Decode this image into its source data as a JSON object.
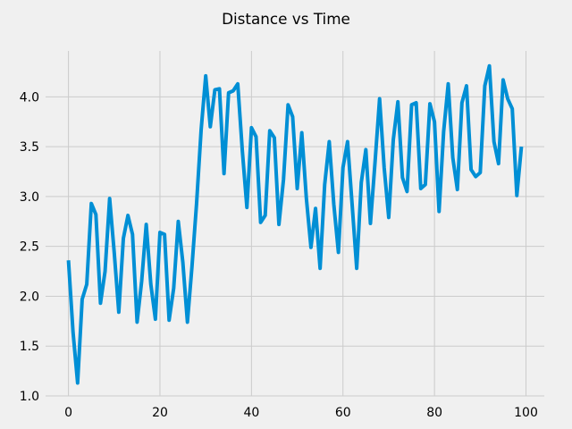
{
  "chart_data": {
    "type": "line",
    "title": "Distance vs Time",
    "xlabel": "",
    "ylabel": "",
    "xlim": [
      -5,
      104
    ],
    "ylim": [
      1.0,
      4.46
    ],
    "grid": true,
    "line_color": "#008fd5",
    "background_color": "#f0f0f0",
    "grid_color": "#cbcbcb",
    "x_ticks": [
      0,
      20,
      40,
      60,
      80,
      100
    ],
    "y_ticks": [
      1.0,
      1.5,
      2.0,
      2.5,
      3.0,
      3.5,
      4.0
    ],
    "x_tick_labels": [
      "0",
      "20",
      "40",
      "60",
      "80",
      "100"
    ],
    "y_tick_labels": [
      "1.0",
      "1.5",
      "2.0",
      "2.5",
      "3.0",
      "3.5",
      "4.0"
    ],
    "series": [
      {
        "x": [
          0,
          1,
          2,
          3,
          4,
          5,
          6,
          7,
          8,
          9,
          10,
          11,
          12,
          13,
          14,
          15,
          16,
          17,
          18,
          19,
          20,
          21,
          22,
          23,
          24,
          25,
          26,
          27,
          28,
          29,
          30,
          31,
          32,
          33,
          34,
          35,
          36,
          37,
          38,
          39,
          40,
          41,
          42,
          43,
          44,
          45,
          46,
          47,
          48,
          49,
          50,
          51,
          52,
          53,
          54,
          55,
          56,
          57,
          58,
          59,
          60,
          61,
          62,
          63,
          64,
          65,
          66,
          67,
          68,
          69,
          70,
          71,
          72,
          73,
          74,
          75,
          76,
          77,
          78,
          79,
          80,
          81,
          82,
          83,
          84,
          85,
          86,
          87,
          88,
          89,
          90,
          91,
          92,
          93,
          94,
          95,
          96,
          97,
          98,
          99
        ],
        "values": [
          2.36,
          1.64,
          1.13,
          1.97,
          2.12,
          2.93,
          2.82,
          1.93,
          2.25,
          2.98,
          2.44,
          1.84,
          2.58,
          2.81,
          2.62,
          1.74,
          2.15,
          2.72,
          2.12,
          1.77,
          2.64,
          2.62,
          1.76,
          2.08,
          2.75,
          2.34,
          1.74,
          2.3,
          2.93,
          3.67,
          4.21,
          3.7,
          4.07,
          4.08,
          3.23,
          4.04,
          4.06,
          4.13,
          3.46,
          2.89,
          3.69,
          3.6,
          2.74,
          2.81,
          3.66,
          3.59,
          2.72,
          3.17,
          3.92,
          3.8,
          3.08,
          3.64,
          2.98,
          2.49,
          2.88,
          2.28,
          3.12,
          3.55,
          2.92,
          2.44,
          3.29,
          3.55,
          2.92,
          2.28,
          3.14,
          3.47,
          2.73,
          3.34,
          3.98,
          3.29,
          2.79,
          3.57,
          3.95,
          3.19,
          3.05,
          3.92,
          3.94,
          3.08,
          3.12,
          3.93,
          3.75,
          2.85,
          3.65,
          4.13,
          3.39,
          3.07,
          3.94,
          4.11,
          3.27,
          3.2,
          3.24,
          4.11,
          4.31,
          3.55,
          3.33,
          4.17,
          3.98,
          3.88,
          3.01,
          3.5
        ]
      }
    ]
  }
}
